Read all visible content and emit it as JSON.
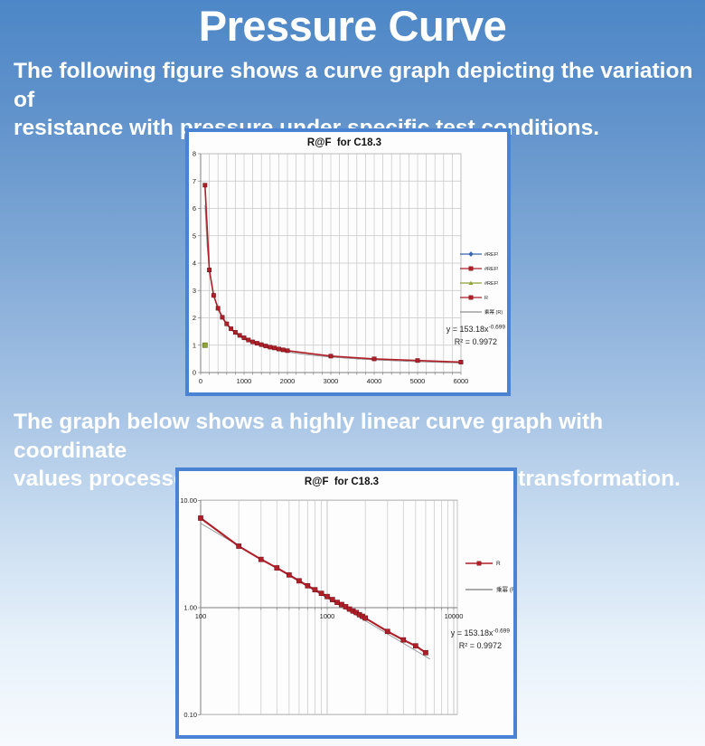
{
  "page": {
    "title": "Pressure Curve",
    "intro": {
      "line1": "The following figure shows a curve graph depicting the variation of",
      "line2": "resistance with pressure under specific test conditions."
    },
    "note": {
      "line1": "The graph below shows a highly linear curve graph with coordinate",
      "line2": "values processed through a logarithmic (log10) transformation."
    }
  },
  "colors": {
    "background_top": "#4d87c7",
    "background_bottom": "#f6fafe",
    "chart_border": "#4a82d4",
    "series_red": "#b01e28",
    "series_red_edge": "#6e0e16",
    "legend_blue": "#3a66b0",
    "legend_green": "#8fa33a",
    "trendline_gray": "#909090",
    "gridline": "#c6c6c6",
    "axis": "#7f7f7f",
    "chart_text": "#222222"
  },
  "chart_data": [
    {
      "type": "line",
      "title": "R@F  for C18.3",
      "x_scale": "linear",
      "y_scale": "linear",
      "xlim": [
        0,
        6000
      ],
      "ylim": [
        0,
        8
      ],
      "x_tick_labels": [
        "0",
        "1000",
        "2000",
        "3000",
        "4000",
        "5000",
        "6000"
      ],
      "x_minor_step": 200,
      "y_tick_labels": [
        "0",
        "1",
        "2",
        "3",
        "4",
        "5",
        "6",
        "7",
        "8"
      ],
      "grid": "on",
      "legend_position": "right",
      "series": [
        {
          "name": "R",
          "color": "#b01e28",
          "marker": "square",
          "x": [
            100,
            200,
            300,
            400,
            500,
            600,
            700,
            800,
            900,
            1000,
            1100,
            1200,
            1300,
            1400,
            1500,
            1600,
            1700,
            1800,
            1900,
            2000,
            3000,
            4000,
            5000,
            6000
          ],
          "y": [
            6.85,
            3.75,
            2.82,
            2.35,
            2.02,
            1.78,
            1.6,
            1.47,
            1.36,
            1.27,
            1.19,
            1.12,
            1.07,
            1.02,
            0.97,
            0.93,
            0.9,
            0.86,
            0.83,
            0.8,
            0.6,
            0.5,
            0.44,
            0.38
          ]
        },
        {
          "name": "#REF!",
          "color": "#8fa33a",
          "marker": "square",
          "x": [
            100
          ],
          "y": [
            1.0
          ]
        }
      ],
      "trendline": {
        "name": "乘幂 (R)",
        "fit": "power",
        "a": 153.18,
        "b": -0.699,
        "color": "#909090"
      },
      "legend": [
        {
          "label": "#REF!",
          "color": "#3a66b0",
          "marker": "diamond"
        },
        {
          "label": "#REF!",
          "color": "#b01e28",
          "marker": "square"
        },
        {
          "label": "#REF!",
          "color": "#8fa33a",
          "marker": "triangle"
        },
        {
          "label": "R",
          "color": "#b01e28",
          "marker": "square"
        },
        {
          "label": "乘幂 (R)",
          "color": "#909090",
          "marker": "none"
        }
      ],
      "annotation": {
        "equation_base": "y = 153.18x",
        "equation_exponent": "-0.699",
        "r_squared": "R² = 0.9972"
      }
    },
    {
      "type": "line",
      "title": "R@F  for C18.3",
      "x_scale": "log",
      "y_scale": "log",
      "xlim": [
        100,
        10000
      ],
      "ylim": [
        0.1,
        10.0
      ],
      "x_tick_labels": [
        "100",
        "1000",
        "10000"
      ],
      "y_tick_labels": [
        "10.00",
        "1.00",
        "0.10"
      ],
      "grid": "on",
      "legend_position": "right",
      "series": [
        {
          "name": "R",
          "color": "#b01e28",
          "marker": "square",
          "x": [
            100,
            200,
            300,
            400,
            500,
            600,
            700,
            800,
            900,
            1000,
            1100,
            1200,
            1300,
            1400,
            1500,
            1600,
            1700,
            1800,
            1900,
            2000,
            3000,
            4000,
            5000,
            6000
          ],
          "y": [
            6.85,
            3.75,
            2.82,
            2.35,
            2.02,
            1.78,
            1.6,
            1.47,
            1.36,
            1.27,
            1.19,
            1.12,
            1.07,
            1.02,
            0.97,
            0.93,
            0.9,
            0.86,
            0.83,
            0.8,
            0.6,
            0.5,
            0.44,
            0.38
          ]
        }
      ],
      "trendline": {
        "name": "乘幂 (R)",
        "fit": "power",
        "a": 153.18,
        "b": -0.699,
        "color": "#909090"
      },
      "legend": [
        {
          "label": "R",
          "color": "#b01e28",
          "marker": "square"
        },
        {
          "label": "乘幂 (R)",
          "color": "#909090",
          "marker": "none"
        }
      ],
      "annotation": {
        "equation_base": "y = 153.18x",
        "equation_exponent": "-0.699",
        "r_squared": "R² = 0.9972"
      }
    }
  ]
}
